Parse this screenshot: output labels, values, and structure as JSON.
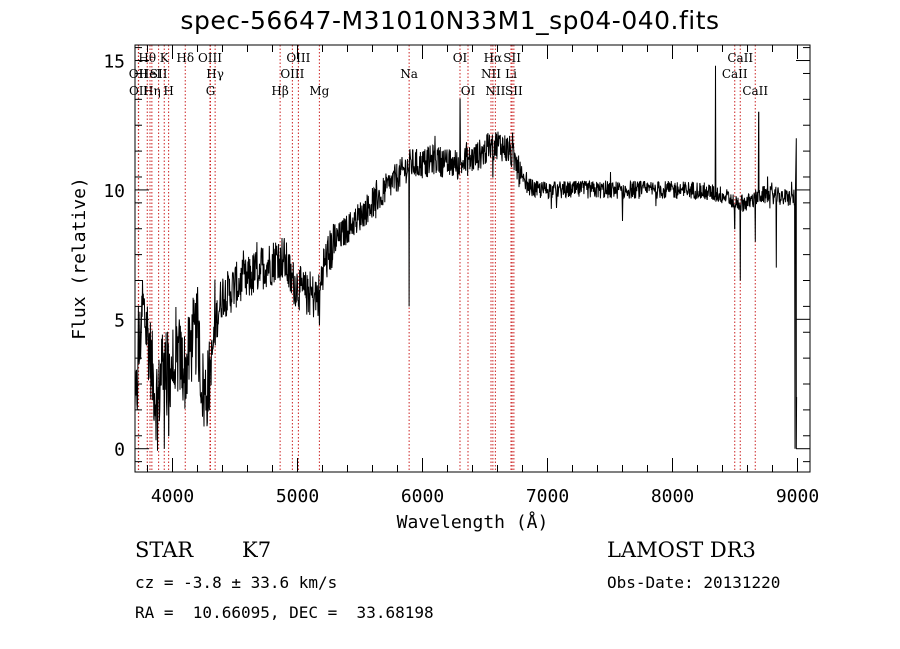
{
  "chart_data": {
    "type": "line",
    "title": "spec-56647-M31010N33M1_sp04-040.fits",
    "xlabel": "Wavelength (Å)",
    "ylabel": "Flux (relative)",
    "xlim": [
      3700,
      9100
    ],
    "ylim": [
      -0.9,
      15.6
    ],
    "x_ticks": [
      4000,
      5000,
      6000,
      7000,
      8000,
      9000
    ],
    "y_ticks": [
      0,
      5,
      10,
      15
    ],
    "spectrum_anchors": [
      [
        3700,
        1.0
      ],
      [
        3730,
        3.5
      ],
      [
        3760,
        5.5
      ],
      [
        3800,
        4.5
      ],
      [
        3850,
        2.5
      ],
      [
        3880,
        1.5
      ],
      [
        3920,
        3.5
      ],
      [
        3960,
        3.0
      ],
      [
        4000,
        3.2
      ],
      [
        4050,
        3.6
      ],
      [
        4100,
        3.0
      ],
      [
        4150,
        4.0
      ],
      [
        4200,
        4.5
      ],
      [
        4250,
        2.0
      ],
      [
        4290,
        2.5
      ],
      [
        4350,
        5.0
      ],
      [
        4400,
        6.0
      ],
      [
        4450,
        6.0
      ],
      [
        4500,
        6.3
      ],
      [
        4600,
        6.5
      ],
      [
        4700,
        7.0
      ],
      [
        4800,
        7.2
      ],
      [
        4850,
        7.5
      ],
      [
        4900,
        7.3
      ],
      [
        4950,
        6.5
      ],
      [
        5000,
        6.3
      ],
      [
        5050,
        6.0
      ],
      [
        5100,
        6.0
      ],
      [
        5150,
        5.8
      ],
      [
        5180,
        6.0
      ],
      [
        5200,
        7.0
      ],
      [
        5300,
        8.0
      ],
      [
        5400,
        8.5
      ],
      [
        5500,
        9.0
      ],
      [
        5600,
        9.5
      ],
      [
        5700,
        10.0
      ],
      [
        5800,
        10.5
      ],
      [
        5900,
        11.0
      ],
      [
        6000,
        11.0
      ],
      [
        6100,
        11.2
      ],
      [
        6200,
        11.0
      ],
      [
        6300,
        11.0
      ],
      [
        6400,
        11.2
      ],
      [
        6500,
        11.5
      ],
      [
        6600,
        11.8
      ],
      [
        6700,
        11.5
      ],
      [
        6750,
        11.0
      ],
      [
        6800,
        10.3
      ],
      [
        6900,
        10.0
      ],
      [
        7000,
        10.0
      ],
      [
        7200,
        10.0
      ],
      [
        7400,
        10.0
      ],
      [
        7600,
        10.0
      ],
      [
        7800,
        10.0
      ],
      [
        8000,
        10.0
      ],
      [
        8200,
        10.0
      ],
      [
        8400,
        9.8
      ],
      [
        8500,
        9.5
      ],
      [
        8600,
        9.5
      ],
      [
        8700,
        9.8
      ],
      [
        8800,
        9.8
      ],
      [
        8900,
        9.7
      ],
      [
        9000,
        9.7
      ]
    ],
    "spectral_features": [
      {
        "x": 3727,
        "y": 5.5
      },
      {
        "x": 3934,
        "y": 0.0
      },
      {
        "x": 3969,
        "y": 0.5
      },
      {
        "x": 4102,
        "y": 2.5
      },
      {
        "x": 4226,
        "y": 2.0
      },
      {
        "x": 4300,
        "y": 3.5
      },
      {
        "x": 4861,
        "y": 6.5
      },
      {
        "x": 5175,
        "y": 4.8
      },
      {
        "x": 5893,
        "y": 5.5
      },
      {
        "x": 6300,
        "y": 13.5
      },
      {
        "x": 6563,
        "y": 10.5
      },
      {
        "x": 6708,
        "y": 11.0
      },
      {
        "x": 6720,
        "y": 12.2
      },
      {
        "x": 7600,
        "y": 8.8
      },
      {
        "x": 8344,
        "y": 14.8
      },
      {
        "x": 8498,
        "y": 8.5
      },
      {
        "x": 8542,
        "y": 6.5
      },
      {
        "x": 8662,
        "y": 8.0
      },
      {
        "x": 8690,
        "y": 13.0
      },
      {
        "x": 8760,
        "y": 10.5
      },
      {
        "x": 8830,
        "y": 7.0
      },
      {
        "x": 8980,
        "y": 0.0
      },
      {
        "x": 8990,
        "y": 12.0
      }
    ],
    "line_markers": [
      {
        "label": "Hθ",
        "x": 3798,
        "row": 0
      },
      {
        "label": "OII",
        "x": 3727,
        "row": 1
      },
      {
        "label": "OII",
        "x": 3729,
        "row": 2
      },
      {
        "label": "HeI",
        "x": 3820,
        "row": 1
      },
      {
        "label": "Hη",
        "x": 3835,
        "row": 2
      },
      {
        "label": "K",
        "x": 3934,
        "row": 0
      },
      {
        "label": "SII",
        "x": 3889,
        "row": 1
      },
      {
        "label": "H",
        "x": 3969,
        "row": 2
      },
      {
        "label": "Hδ",
        "x": 4102,
        "row": 0
      },
      {
        "label": "OIII",
        "x": 4300,
        "row": 0
      },
      {
        "label": "Hγ",
        "x": 4341,
        "row": 1
      },
      {
        "label": "G",
        "x": 4304,
        "row": 2
      },
      {
        "label": "OIII",
        "x": 5007,
        "row": 0
      },
      {
        "label": "OIII",
        "x": 4959,
        "row": 1
      },
      {
        "label": "Hβ",
        "x": 4861,
        "row": 2
      },
      {
        "label": "Mg",
        "x": 5175,
        "row": 2
      },
      {
        "label": "Na",
        "x": 5893,
        "row": 1
      },
      {
        "label": "OI",
        "x": 6300,
        "row": 0
      },
      {
        "label": "OI",
        "x": 6364,
        "row": 2
      },
      {
        "label": "Hα",
        "x": 6563,
        "row": 0
      },
      {
        "label": "NII",
        "x": 6548,
        "row": 1
      },
      {
        "label": "NII",
        "x": 6583,
        "row": 2
      },
      {
        "label": "SII",
        "x": 6717,
        "row": 0
      },
      {
        "label": "Li",
        "x": 6708,
        "row": 1
      },
      {
        "label": "SII",
        "x": 6731,
        "row": 2
      },
      {
        "label": "CaII",
        "x": 8542,
        "row": 0
      },
      {
        "label": "CaII",
        "x": 8498,
        "row": 1
      },
      {
        "label": "CaII",
        "x": 8662,
        "row": 2
      }
    ],
    "extra_marker_lines": [
      3798,
      3835,
      3889,
      3934,
      3969,
      4102,
      4304,
      4341,
      4861,
      4959,
      5007,
      5175,
      5893,
      6300,
      6364,
      6548,
      6563,
      6583,
      6708,
      6717,
      6731,
      8498,
      8542,
      8662
    ]
  },
  "info": {
    "class": "STAR",
    "subclass": "K7",
    "redshift": "cz = -3.8 ± 33.6 km/s",
    "coords": "RA =  10.66095, DEC =  33.68198",
    "survey": "LAMOST DR3",
    "obs_date": "Obs-Date: 20131220"
  },
  "colors": {
    "marker": "#cc2222",
    "line": "#000000"
  }
}
